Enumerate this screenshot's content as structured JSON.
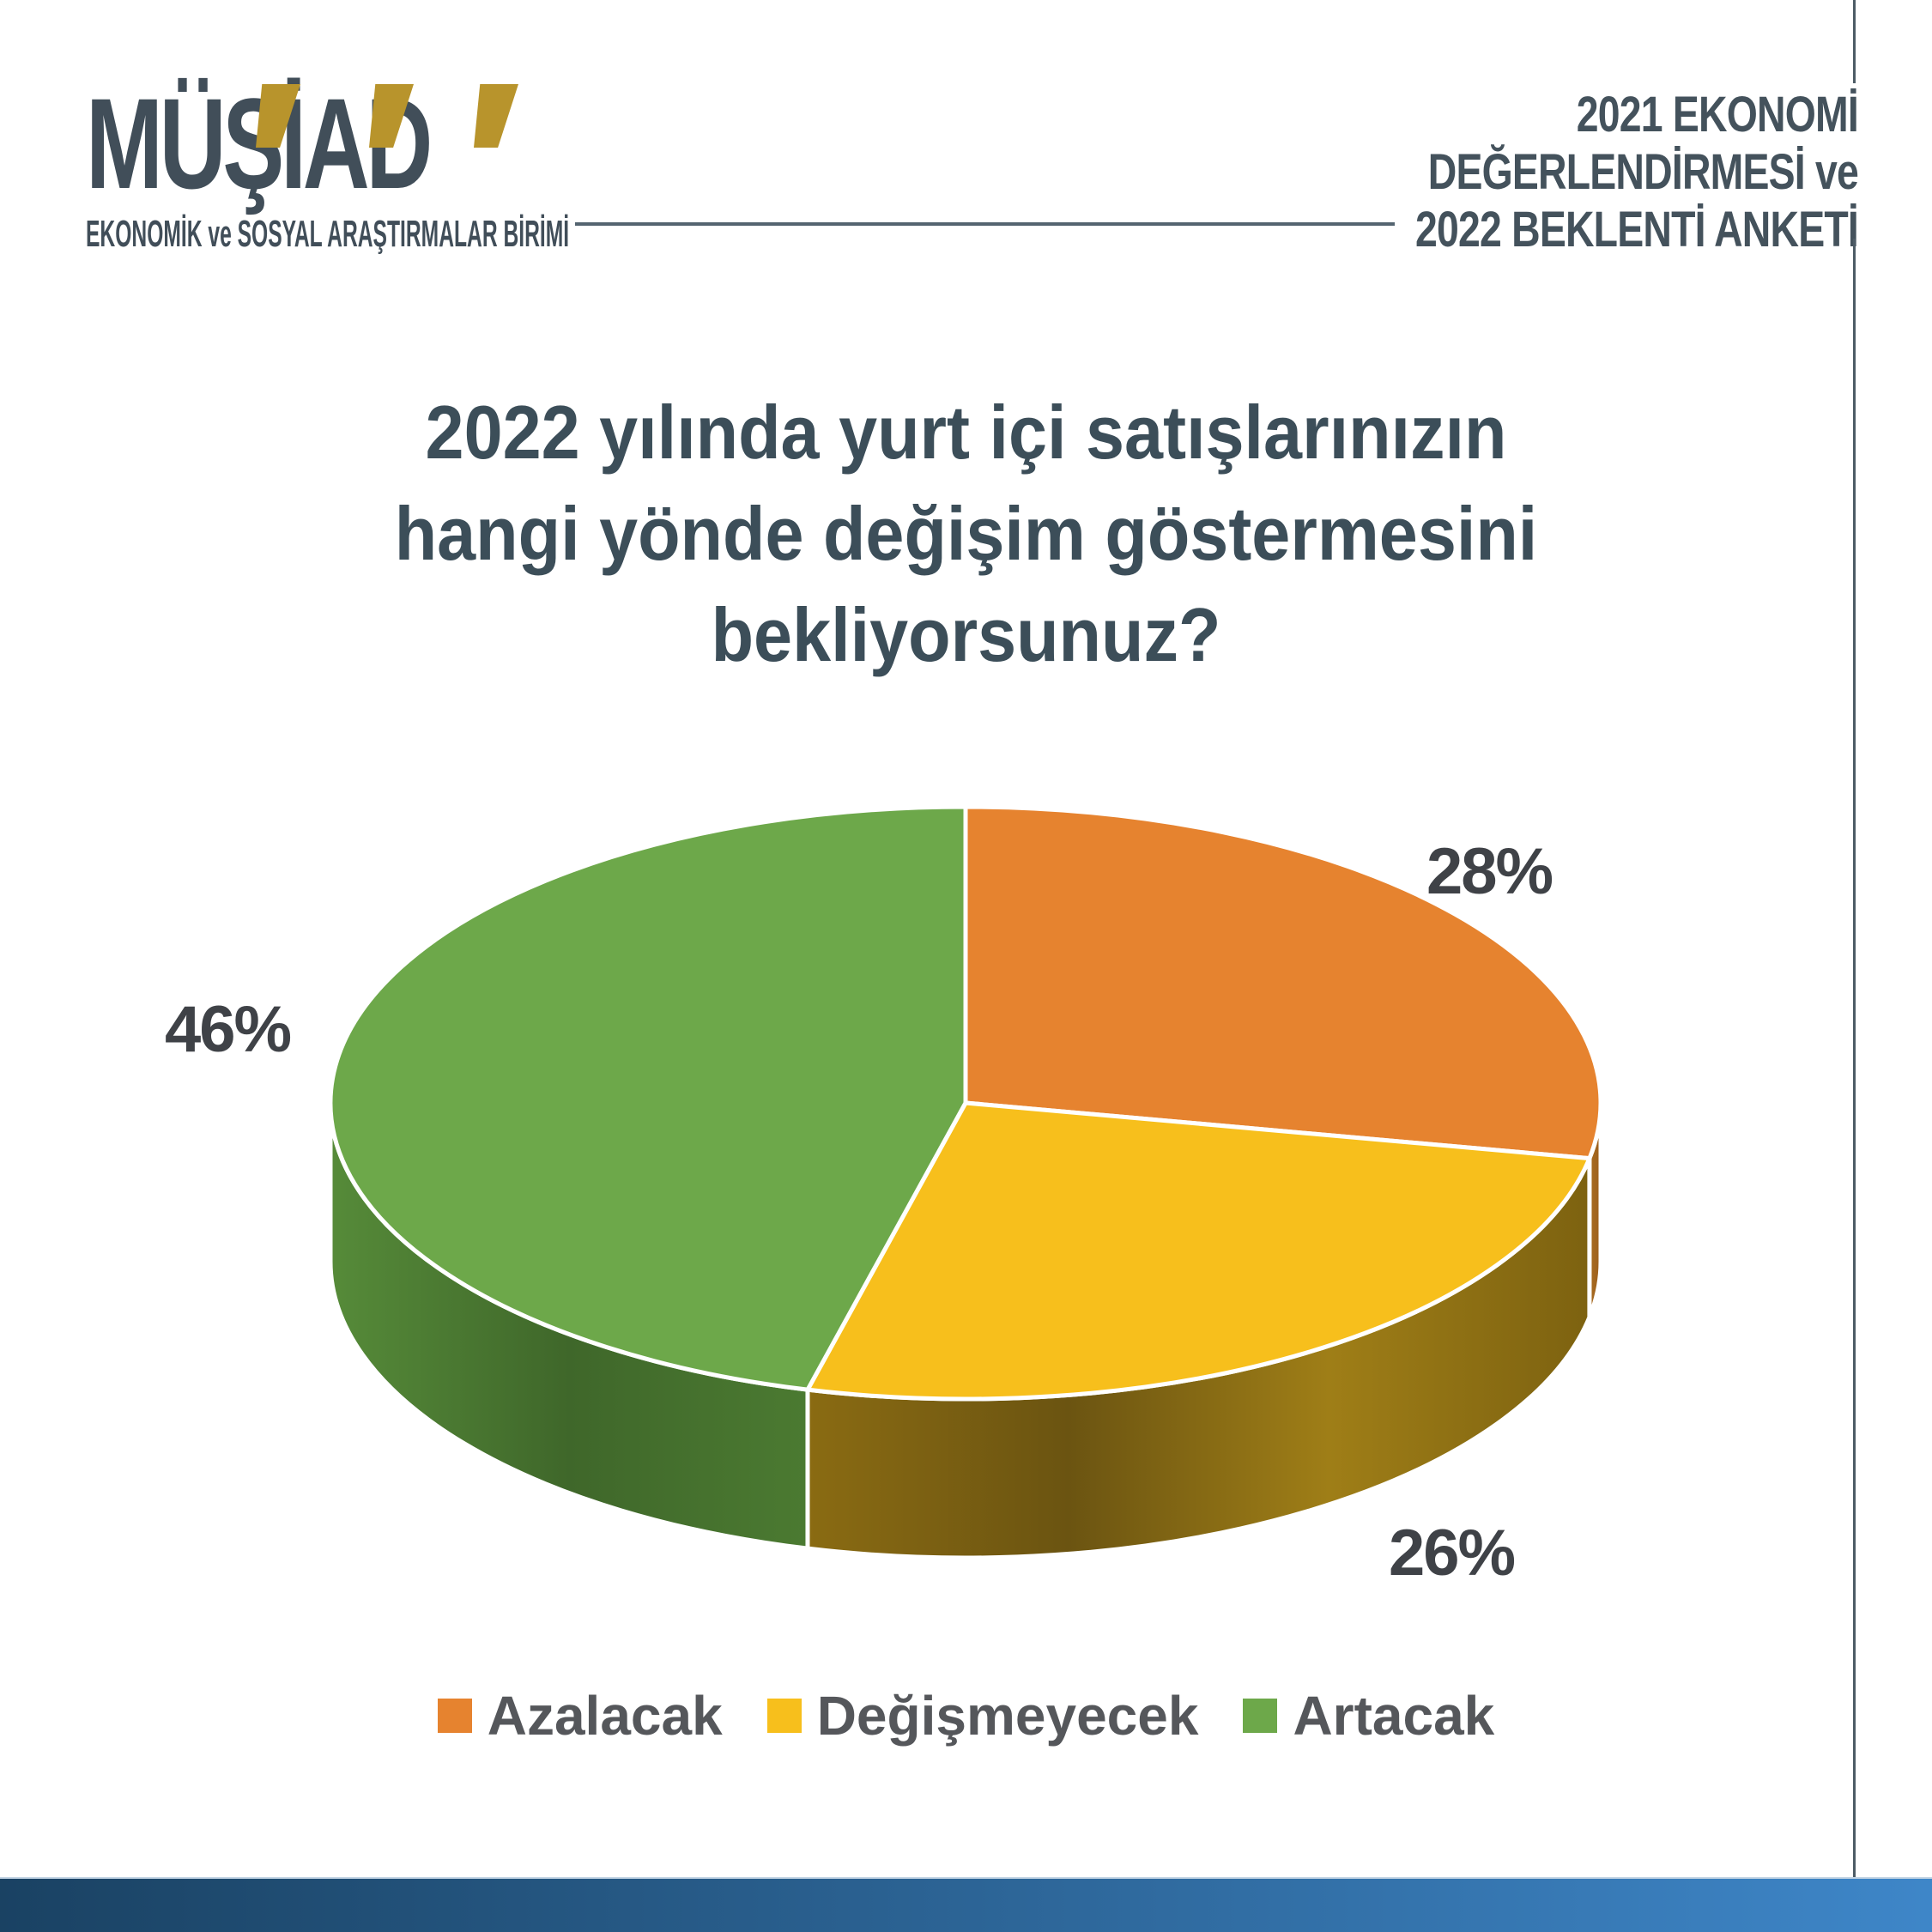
{
  "header": {
    "logo": {
      "wordmark": "MÜŞİAD",
      "subtitle": "EKONOMİK ve SOSYAL ARAŞTIRMALAR BİRİMİ",
      "text_color": "#414e59",
      "accent_color": "#b8942c"
    },
    "right_title": "2021 EKONOMİ\nDEĞERLENDİRMESİ ve\n2022 BEKLENTİ ANKETİ"
  },
  "question_title": "2022 yılında yurt içi satışlarınızın\nhangi yönde değişim göstermesini\nbekliyorsunuz?",
  "chart_data": {
    "type": "pie",
    "projection": "3d",
    "title": "2022 yılında yurt içi satışlarınızın hangi yönde değişim göstermesini bekliyorsunuz?",
    "start_angle_deg": 90,
    "direction": "clockwise",
    "legend_position": "bottom",
    "separator_color": "#ffffff",
    "slices": [
      {
        "label": "Azalacak",
        "value": 28,
        "pct_label": "28%",
        "color": "#e6832f",
        "side_stops": [
          "#a86c20",
          "#9c5f1d"
        ]
      },
      {
        "label": "Değişmeyecek",
        "value": 26,
        "pct_label": "26%",
        "color": "#f7bf1c",
        "side_stops": [
          "#8a6b12",
          "#6b5411",
          "#9f7e17",
          "#7d6210"
        ]
      },
      {
        "label": "Artacak",
        "value": 46,
        "pct_label": "46%",
        "color": "#6da84a",
        "side_stops": [
          "#568b39",
          "#3f672a",
          "#4b7a31"
        ]
      }
    ]
  },
  "footer": {
    "bar_gradient": [
      "#1a4263",
      "#3e86c8"
    ]
  }
}
